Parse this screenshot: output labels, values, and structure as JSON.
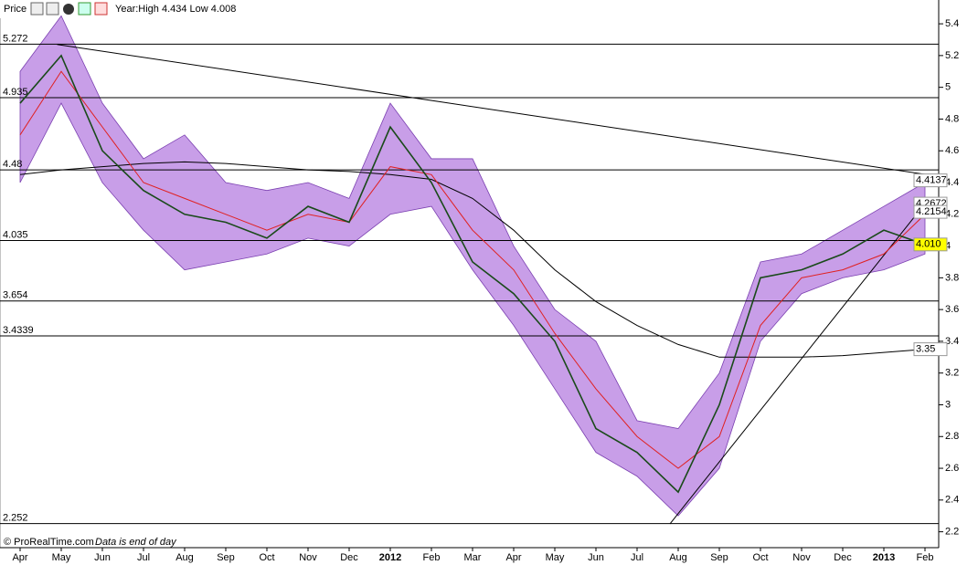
{
  "chart_data": {
    "type": "line",
    "title": "Price",
    "subtitle": "Year:High 4.434 Low 4.008",
    "source": "© ProRealTime.com",
    "note": "Data is end of day",
    "categories": [
      "Apr",
      "May",
      "Jun",
      "Jul",
      "Aug",
      "Sep",
      "Oct",
      "Nov",
      "Dec",
      "2012",
      "Feb",
      "Mar",
      "Apr",
      "May",
      "Jun",
      "Jul",
      "Aug",
      "Sep",
      "Oct",
      "Nov",
      "Dec",
      "2013",
      "Feb"
    ],
    "ylim": [
      2.1,
      5.55
    ],
    "yticks": [
      2.2,
      2.4,
      2.6,
      2.8,
      3,
      3.2,
      3.4,
      3.6,
      3.8,
      4,
      4.2,
      4.4,
      4.6,
      4.8,
      5,
      5.2,
      5.4
    ],
    "band": {
      "color": "#b57ee0",
      "upper": [
        5.1,
        5.45,
        4.9,
        4.55,
        4.7,
        4.4,
        4.35,
        4.4,
        4.3,
        4.9,
        4.55,
        4.55,
        4.0,
        3.6,
        3.4,
        2.9,
        2.85,
        3.2,
        3.9,
        3.95,
        4.1,
        4.25,
        4.4
      ],
      "lower": [
        4.4,
        4.9,
        4.4,
        4.1,
        3.85,
        3.9,
        3.95,
        4.05,
        4.0,
        4.2,
        4.25,
        3.85,
        3.5,
        3.1,
        2.7,
        2.55,
        2.3,
        2.6,
        3.4,
        3.7,
        3.8,
        3.85,
        3.95
      ]
    },
    "series": [
      {
        "color": "#000000",
        "values": [
          4.45,
          4.48,
          4.5,
          4.52,
          4.53,
          4.52,
          4.5,
          4.48,
          4.47,
          4.45,
          4.42,
          4.3,
          4.1,
          3.85,
          3.65,
          3.5,
          3.38,
          3.3,
          3.3,
          3.3,
          3.31,
          3.33,
          3.35
        ]
      },
      {
        "color": "#e02020",
        "values": [
          4.7,
          5.1,
          4.75,
          4.4,
          4.3,
          4.2,
          4.1,
          4.2,
          4.15,
          4.5,
          4.45,
          4.1,
          3.85,
          3.45,
          3.1,
          2.8,
          2.6,
          2.8,
          3.5,
          3.8,
          3.85,
          3.95,
          4.2
        ]
      },
      {
        "color": "#1a4a1a",
        "values": [
          4.9,
          5.2,
          4.6,
          4.35,
          4.2,
          4.15,
          4.05,
          4.25,
          4.15,
          4.75,
          4.4,
          3.9,
          3.7,
          3.4,
          2.85,
          2.7,
          2.45,
          3.0,
          3.8,
          3.85,
          3.95,
          4.1,
          4.01
        ]
      }
    ],
    "levels": [
      5.272,
      4.935,
      4.48,
      4.035,
      3.654,
      3.4339,
      2.252
    ],
    "trendlines": [
      {
        "x": [
          0.9,
          22.3
        ],
        "y": [
          5.27,
          4.44
        ]
      },
      {
        "x": [
          15.8,
          22.1
        ],
        "y": [
          2.25,
          4.3
        ]
      }
    ],
    "price_labels": [
      4.4137,
      4.2672,
      4.2154,
      {
        "value": 4.01,
        "label": "4.010"
      },
      3.35
    ]
  }
}
